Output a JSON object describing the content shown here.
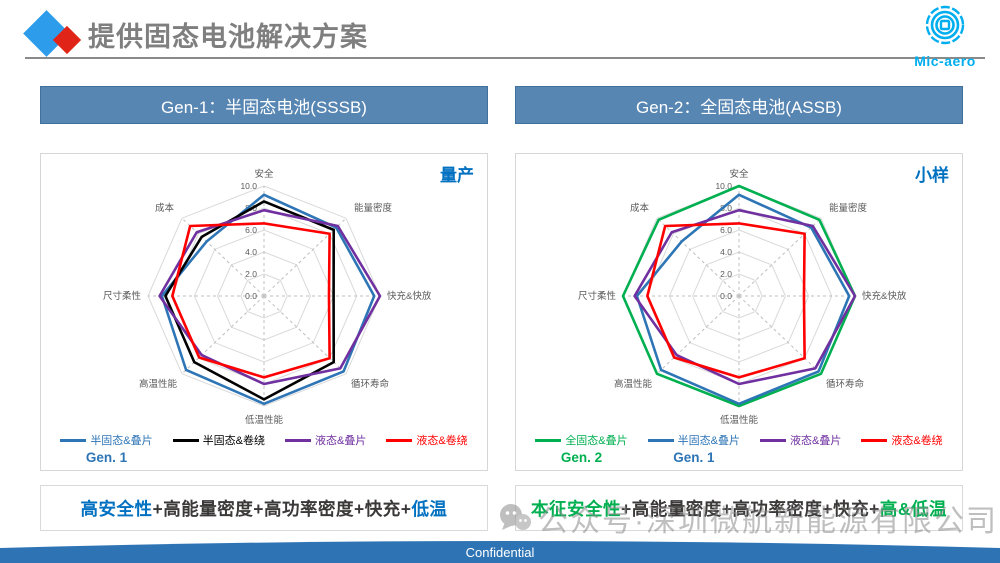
{
  "page": {
    "title": "提供固态电池解决方案",
    "logo_text": "Mic-aero",
    "watermark": "公众号·深圳微航新能源有限公司",
    "confidential": "Confidential",
    "accent_blue": "#0070c0",
    "accent_green": "#00b050",
    "header_fill": "#5886b3"
  },
  "panels": [
    {
      "header": "Gen-1：半固态电池(SSSB)",
      "summary": [
        {
          "text": "高安全性",
          "color": "#0070c0"
        },
        {
          "text": "+高能量密度+高功率密度+快充+",
          "color": "#3b3838"
        },
        {
          "text": "低温",
          "color": "#0070c0"
        }
      ]
    },
    {
      "header": "Gen-2：全固态电池(ASSB)",
      "summary": [
        {
          "text": "本征安全性",
          "color": "#00b050"
        },
        {
          "text": "+高能量密度+高功率密度+快充+",
          "color": "#3b3838"
        },
        {
          "text": "高&低温",
          "color": "#00b050"
        }
      ]
    }
  ],
  "chart_data": [
    {
      "type": "radar",
      "corner_label": "量产",
      "axes": [
        "安全",
        "能量密度",
        "快充&快放",
        "循环寿命",
        "低温性能",
        "高温性能",
        "尺寸柔性",
        "成本"
      ],
      "rmin": 0,
      "rmax": 10,
      "tick_interval": 2,
      "ticks": [
        "0.0",
        "2.0",
        "4.0",
        "6.0",
        "8.0",
        "10.0"
      ],
      "grid": "octagon-rings-with-dashed-spokes",
      "legend_position": "bottom",
      "series": [
        {
          "name": "半固态&叠片",
          "color": "#2e75b6",
          "gen": "Gen. 1",
          "gen_color": "#2e75b6",
          "values": [
            9.2,
            8.8,
            9.5,
            9.7,
            9.8,
            9.5,
            8.8,
            7.0
          ]
        },
        {
          "name": "半固态&卷绕",
          "color": "#000000",
          "values": [
            8.6,
            8.5,
            6.0,
            8.5,
            9.4,
            8.5,
            8.5,
            7.6
          ]
        },
        {
          "name": "液态&叠片",
          "color": "#7030a0",
          "values": [
            7.8,
            9.0,
            10.0,
            9.3,
            8.0,
            7.6,
            9.0,
            8.2
          ]
        },
        {
          "name": "液态&卷绕",
          "color": "#ff0000",
          "values": [
            6.6,
            8.0,
            5.6,
            8.0,
            7.4,
            7.9,
            7.9,
            9.0
          ]
        }
      ]
    },
    {
      "type": "radar",
      "corner_label": "小样",
      "axes": [
        "安全",
        "能量密度",
        "快充&快放",
        "循环寿命",
        "低温性能",
        "高温性能",
        "尺寸柔性",
        "成本"
      ],
      "rmin": 0,
      "rmax": 10,
      "tick_interval": 2,
      "ticks": [
        "0.0",
        "2.0",
        "4.0",
        "6.0",
        "8.0",
        "10.0"
      ],
      "grid": "octagon-rings-with-dashed-spokes",
      "legend_position": "bottom",
      "series": [
        {
          "name": "全固态&叠片",
          "color": "#00b050",
          "gen": "Gen. 2",
          "gen_color": "#00b050",
          "values": [
            10.0,
            9.8,
            10.0,
            10.0,
            10.0,
            10.0,
            10.0,
            9.8
          ]
        },
        {
          "name": "半固态&叠片",
          "color": "#2e75b6",
          "gen": "Gen. 1",
          "gen_color": "#2e75b6",
          "values": [
            9.2,
            8.8,
            9.5,
            9.7,
            9.8,
            9.5,
            8.8,
            7.0
          ]
        },
        {
          "name": "液态&叠片",
          "color": "#7030a0",
          "values": [
            7.8,
            9.0,
            10.0,
            9.3,
            8.0,
            7.6,
            9.0,
            8.2
          ]
        },
        {
          "name": "液态&卷绕",
          "color": "#ff0000",
          "values": [
            6.6,
            8.0,
            5.6,
            8.0,
            7.4,
            7.9,
            7.9,
            9.0
          ]
        }
      ]
    }
  ]
}
